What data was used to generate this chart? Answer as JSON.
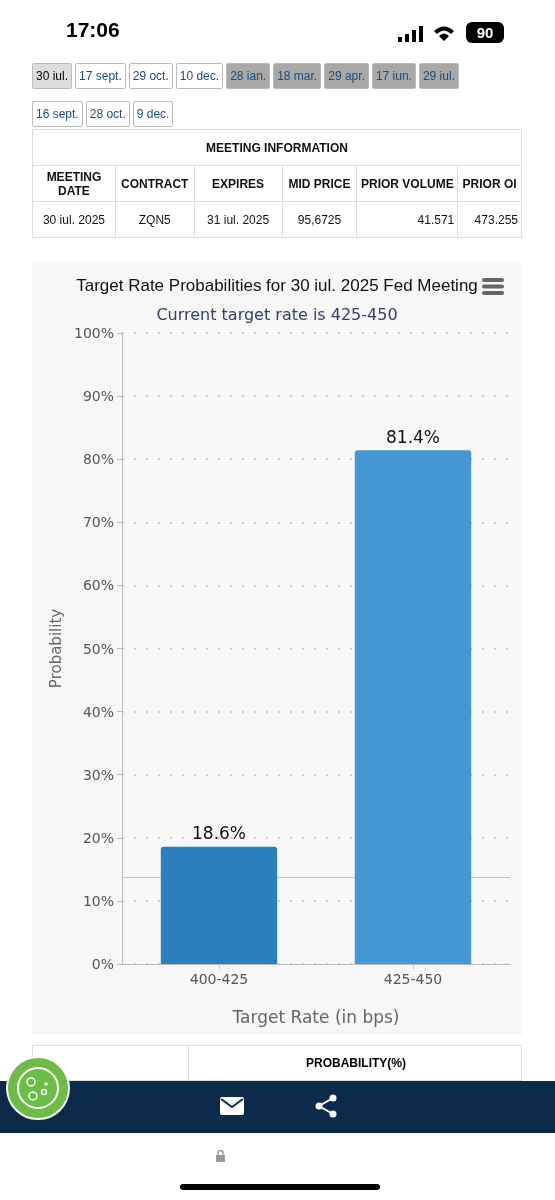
{
  "chart_data": [
    {
      "type": "other",
      "annotations": [
        "17:06",
        "90",
        "30 iul.",
        "17 sept.",
        "29 oct.",
        "10 dec.",
        "28 ian.",
        "18 mar.",
        "29 apr.",
        "17 iun.",
        "29 iul.",
        "16 sept.",
        "28 oct.",
        "9 dec.",
        "MEETING INFORMATION",
        "MEETING DATE",
        "CONTRACT",
        "EXPIRES",
        "MID PRICE",
        "PRIOR VOLUME",
        "PRIOR OI",
        "30 iul. 2025",
        "ZQN5",
        "31 iul. 2025",
        "95,6725",
        "41.571",
        "473.255"
      ]
    },
    {
      "type": "bar",
      "title": "Target Rate Probabilities for 30 iul. 2025 Fed Meeting",
      "subtitle": "Current target rate is 425-450",
      "xlabel": "Target Rate (in bps)",
      "ylabel": "Probability",
      "categories": [
        "400-425",
        "425-450"
      ],
      "values": [
        18.6,
        81.4
      ],
      "colors": [
        "#2b7fba",
        "#4398d3"
      ],
      "value_labels": [
        "18.6%",
        "81.4%"
      ],
      "ylim": [
        0,
        100
      ],
      "yticks": [
        {
          "value": 0,
          "label": "0%"
        },
        {
          "value": 10,
          "label": "10%"
        },
        {
          "value": 20,
          "label": "20%"
        },
        {
          "value": 30,
          "label": "30%"
        },
        {
          "value": 40,
          "label": "40%"
        },
        {
          "value": 50,
          "label": "50%"
        },
        {
          "value": 60,
          "label": "60%"
        },
        {
          "value": 70,
          "label": "70%"
        },
        {
          "value": 80,
          "label": "80%"
        },
        {
          "value": 90,
          "label": "90%"
        },
        {
          "value": 100,
          "label": "100%"
        }
      ],
      "grid": "y",
      "ref_lines": [
        {
          "axis": "y",
          "value": 13.7,
          "color": "#c0c0c0"
        }
      ]
    },
    {
      "type": "other",
      "annotations": [
        "PROBABILITY(%)"
      ]
    }
  ]
}
